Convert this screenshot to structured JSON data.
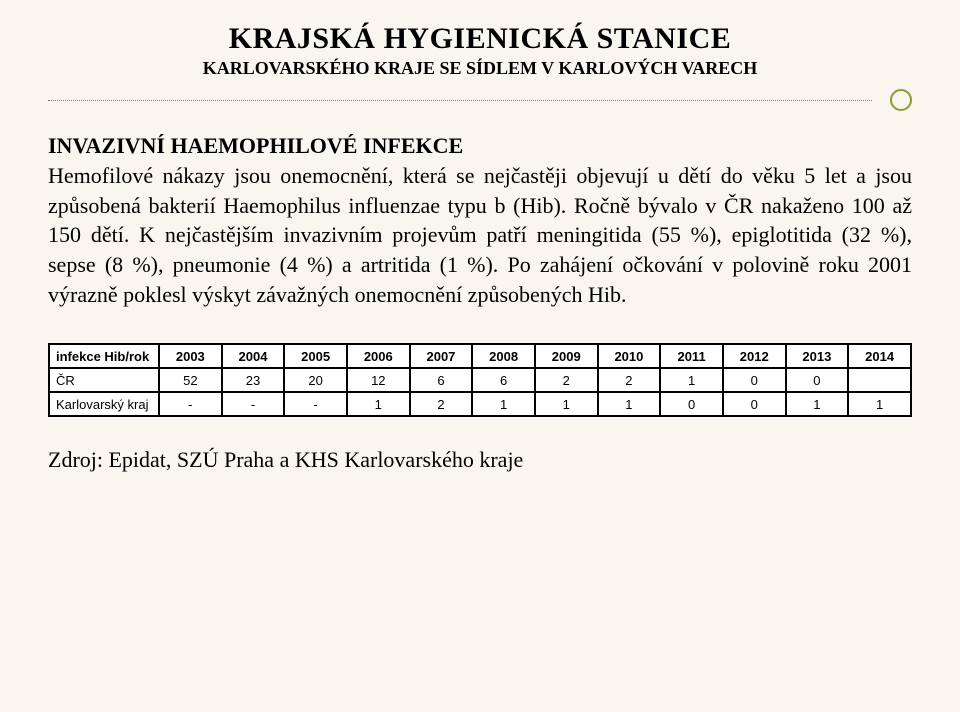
{
  "header": {
    "title_main": "KRAJSKÁ HYGIENICKÁ STANICE",
    "title_sub": "KARLOVARSKÉHO KRAJE SE SÍDLEM V KARLOVÝCH VARECH"
  },
  "section": {
    "heading": "INVAZIVNÍ HAEMOPHILOVÉ INFEKCE",
    "paragraph": "Hemofilové nákazy jsou onemocnění, která se nejčastěji objevují u dětí do věku 5 let a jsou způsobená bakterií Haemophilus influenzae typu b (Hib). Ročně bývalo v ČR nakaženo 100 až 150 dětí. K nejčastějším invazivním projevům patří meningitida (55 %), epiglotitida (32 %), sepse (8 %), pneumonie (4 %) a artritida (1 %). Po zahájení očkování v polovině roku 2001 výrazně poklesl výskyt závažných onemocnění způsobených Hib."
  },
  "table": {
    "corner": "infekce Hib/rok",
    "years": [
      "2003",
      "2004",
      "2005",
      "2006",
      "2007",
      "2008",
      "2009",
      "2010",
      "2011",
      "2012",
      "2013",
      "2014"
    ],
    "rows": [
      {
        "label": "ČR",
        "cells": [
          "52",
          "23",
          "20",
          "12",
          "6",
          "6",
          "2",
          "2",
          "1",
          "0",
          "0",
          ""
        ]
      },
      {
        "label": "Karlovarský kraj",
        "cells": [
          "-",
          "-",
          "-",
          "1",
          "2",
          "1",
          "1",
          "1",
          "0",
          "0",
          "1",
          "1"
        ]
      }
    ],
    "colwidth_first": "110px"
  },
  "source": "Zdroj: Epidat, SZÚ Praha a KHS Karlovarského kraje",
  "style": {
    "background": "#f8f6ee",
    "divider_color": "#7a7a55",
    "circle_border": "#8a9a3a"
  }
}
